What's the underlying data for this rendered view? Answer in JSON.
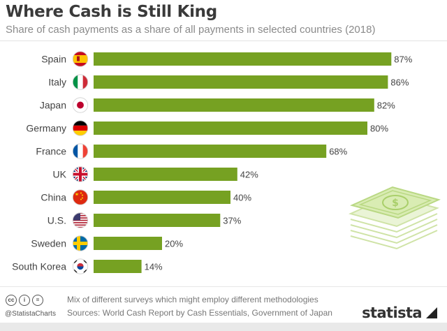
{
  "header": {
    "title": "Where Cash is Still King",
    "subtitle": "Share of cash payments as a share of all payments in selected countries (2018)"
  },
  "chart_data": {
    "type": "bar",
    "orientation": "horizontal",
    "categories": [
      "Spain",
      "Italy",
      "Japan",
      "Germany",
      "France",
      "UK",
      "China",
      "U.S.",
      "Sweden",
      "South Korea"
    ],
    "values": [
      87,
      86,
      82,
      80,
      68,
      42,
      40,
      37,
      20,
      14
    ],
    "value_labels": [
      "87%",
      "86%",
      "82%",
      "80%",
      "68%",
      "42%",
      "40%",
      "37%",
      "20%",
      "14%"
    ],
    "title": "Where Cash is Still King",
    "subtitle": "Share of cash payments as a share of all payments in selected countries (2018)",
    "xlim": [
      0,
      100
    ],
    "grid": false,
    "legend": "none",
    "bar_color": "#76a122",
    "icons": [
      "flag-spain-icon",
      "flag-italy-icon",
      "flag-japan-icon",
      "flag-germany-icon",
      "flag-france-icon",
      "flag-uk-icon",
      "flag-china-icon",
      "flag-usa-icon",
      "flag-sweden-icon",
      "flag-south-korea-icon"
    ]
  },
  "footer": {
    "note": "Mix of different surveys which might employ different methodologies",
    "sources": "Sources: World Cash Report by Cash Essentials, Government of Japan",
    "handle": "@StatistaCharts",
    "brand": "statista",
    "license_icons": [
      "cc",
      "i",
      "="
    ]
  },
  "colors": {
    "accent": "#76a122",
    "title": "#3a3a3a",
    "subtitle": "#8a8a8a"
  }
}
